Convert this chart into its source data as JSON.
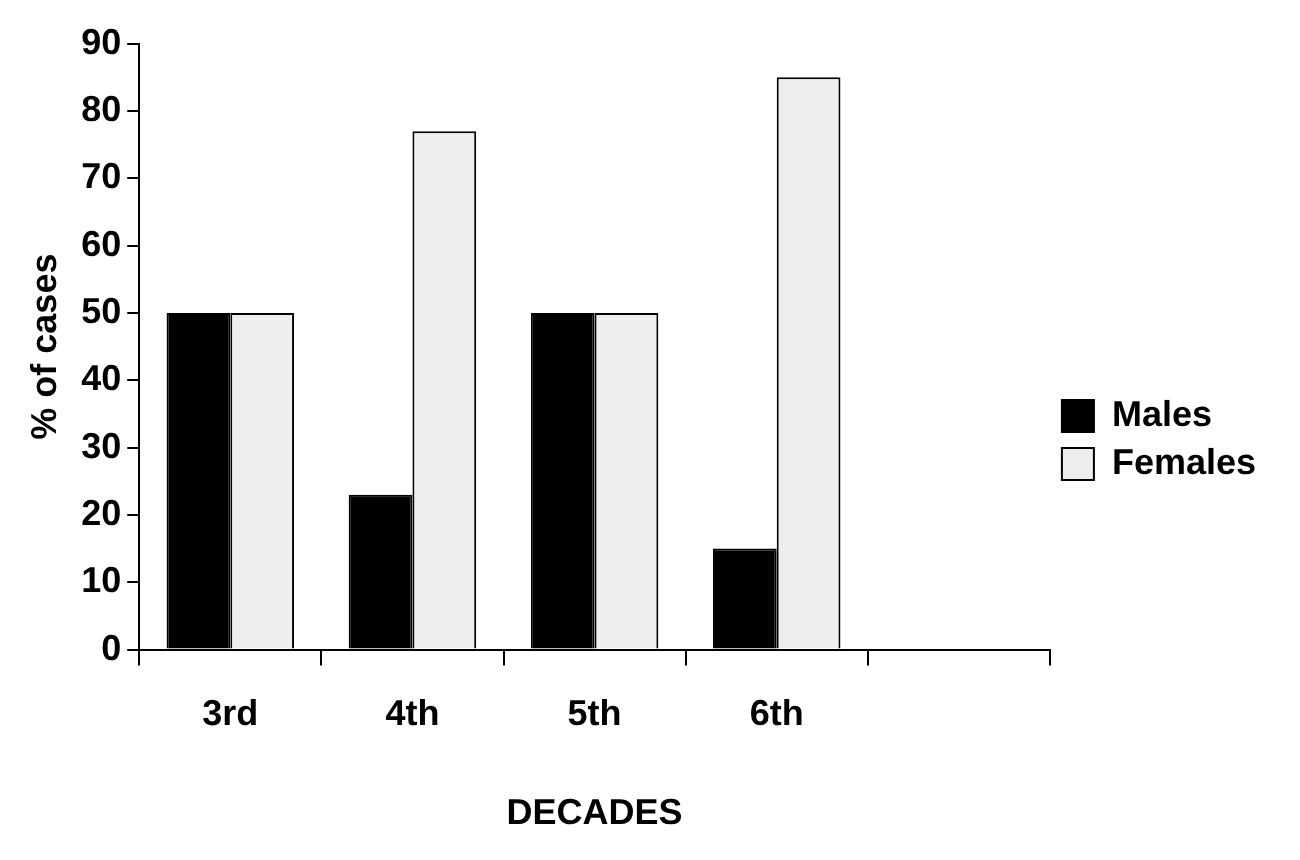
{
  "chart_data": {
    "type": "bar",
    "xlabel": "DECADES",
    "ylabel": "% of cases",
    "categories": [
      "3rd",
      "4th",
      "5th",
      "6th",
      null
    ],
    "series": [
      {
        "name": "Males",
        "color": "#000000",
        "values": [
          50,
          23,
          50,
          15,
          null
        ]
      },
      {
        "name": "Females",
        "color": "#eeeeee",
        "values": [
          50,
          77,
          50,
          85,
          null
        ]
      }
    ],
    "ylim": [
      0,
      90
    ],
    "yticks": [
      0,
      10,
      20,
      30,
      40,
      50,
      60,
      70,
      80,
      90
    ],
    "grid": false,
    "legend": "right"
  }
}
